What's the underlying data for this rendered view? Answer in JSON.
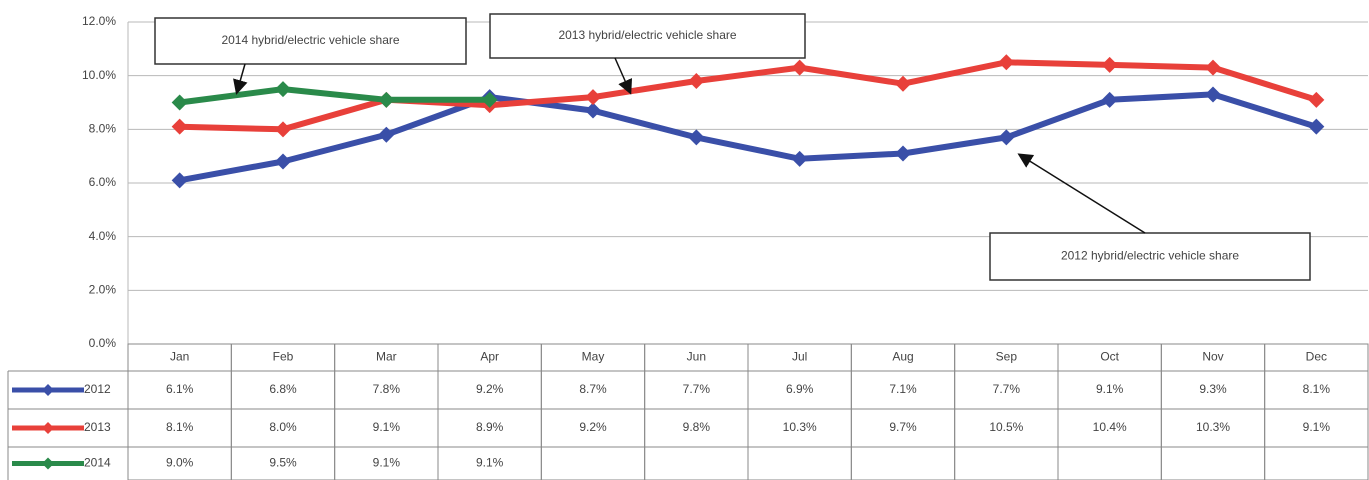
{
  "chart_data": {
    "type": "line",
    "categories": [
      "Jan",
      "Feb",
      "Mar",
      "Apr",
      "May",
      "Jun",
      "Jul",
      "Aug",
      "Sep",
      "Oct",
      "Nov",
      "Dec"
    ],
    "series": [
      {
        "name": "2012",
        "color": "#3a4fa8",
        "values": [
          6.1,
          6.8,
          7.8,
          9.2,
          8.7,
          7.7,
          6.9,
          7.1,
          7.7,
          9.1,
          9.3,
          8.1
        ],
        "value_labels": [
          "6.1%",
          "6.8%",
          "7.8%",
          "9.2%",
          "8.7%",
          "7.7%",
          "6.9%",
          "7.1%",
          "7.7%",
          "9.1%",
          "9.3%",
          "8.1%"
        ]
      },
      {
        "name": "2013",
        "color": "#e8403a",
        "values": [
          8.1,
          8.0,
          9.1,
          8.9,
          9.2,
          9.8,
          10.3,
          9.7,
          10.5,
          10.4,
          10.3,
          9.1
        ],
        "value_labels": [
          "8.1%",
          "8.0%",
          "9.1%",
          "8.9%",
          "9.2%",
          "9.8%",
          "10.3%",
          "9.7%",
          "10.5%",
          "10.4%",
          "10.3%",
          "9.1%"
        ]
      },
      {
        "name": "2014",
        "color": "#2a8a4a",
        "values": [
          9.0,
          9.5,
          9.1,
          9.1,
          null,
          null,
          null,
          null,
          null,
          null,
          null,
          null
        ],
        "value_labels": [
          "9.0%",
          "9.5%",
          "9.1%",
          "9.1%",
          null,
          null,
          null,
          null,
          null,
          null,
          null,
          null
        ]
      }
    ],
    "ylim": [
      0,
      12
    ],
    "yticks": [
      {
        "value": 0,
        "label": "0.0%"
      },
      {
        "value": 2,
        "label": "2.0%"
      },
      {
        "value": 4,
        "label": "4.0%"
      },
      {
        "value": 6,
        "label": "6.0%"
      },
      {
        "value": 8,
        "label": "8.0%"
      },
      {
        "value": 10,
        "label": "10.0%"
      },
      {
        "value": 12,
        "label": "12.0%"
      }
    ],
    "grid": true,
    "annotations": [
      {
        "text": "2014 hybrid/electric vehicle share"
      },
      {
        "text": "2013 hybrid/electric vehicle share"
      },
      {
        "text": "2012 hybrid/electric vehicle share"
      }
    ]
  }
}
